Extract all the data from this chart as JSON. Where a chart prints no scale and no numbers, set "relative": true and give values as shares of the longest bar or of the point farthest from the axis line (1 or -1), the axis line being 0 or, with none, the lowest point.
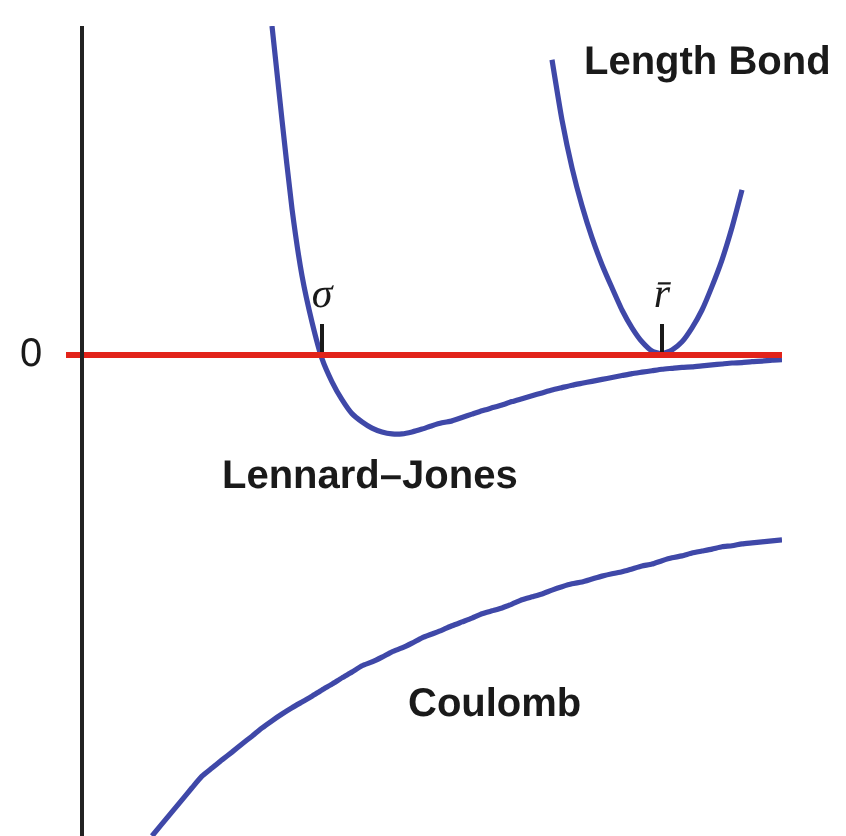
{
  "chart_data": {
    "type": "line",
    "relative": true,
    "categories": [
      null,
      null,
      null,
      null,
      null,
      null,
      null,
      null,
      null,
      null,
      null,
      null,
      null,
      null,
      null,
      null,
      null,
      null,
      null,
      null,
      null,
      null,
      null,
      null,
      "σ",
      null,
      null,
      null,
      null,
      null,
      null,
      null,
      null,
      null,
      null,
      null,
      null,
      null,
      null,
      null,
      null,
      null,
      null,
      null,
      null,
      null,
      null,
      null,
      null,
      null,
      null,
      null,
      null,
      null,
      null,
      null,
      null,
      null,
      "r̄",
      null,
      null,
      null,
      null,
      null,
      null,
      null,
      null,
      null,
      null,
      null,
      null
    ],
    "series": [
      {
        "name": "Lennard–Jones",
        "color": "#3f48a8",
        "values": [
          null,
          null,
          null,
          null,
          null,
          null,
          null,
          null,
          null,
          null,
          null,
          null,
          null,
          null,
          null,
          null,
          null,
          null,
          null,
          0.68,
          0.485,
          0.301,
          0.162,
          0.066,
          -0.01,
          -0.058,
          -0.095,
          -0.124,
          -0.141,
          -0.154,
          -0.162,
          -0.166,
          -0.166,
          -0.162,
          -0.156,
          -0.149,
          -0.143,
          -0.139,
          -0.132,
          -0.125,
          -0.118,
          -0.112,
          -0.106,
          -0.099,
          -0.093,
          -0.087,
          -0.081,
          -0.075,
          -0.07,
          -0.065,
          -0.061,
          -0.057,
          -0.053,
          -0.049,
          -0.045,
          -0.041,
          -0.038,
          -0.035,
          -0.032,
          -0.03,
          -0.028,
          -0.027,
          -0.025,
          -0.023,
          -0.021,
          -0.019,
          -0.018,
          -0.016,
          -0.015,
          -0.013,
          -0.012
        ]
      },
      {
        "name": "Length Bond",
        "color": "#3f48a8",
        "values": [
          null,
          null,
          null,
          null,
          null,
          null,
          null,
          null,
          null,
          null,
          null,
          null,
          null,
          null,
          null,
          null,
          null,
          null,
          null,
          null,
          null,
          null,
          null,
          null,
          null,
          null,
          null,
          null,
          null,
          null,
          null,
          null,
          null,
          null,
          null,
          null,
          null,
          null,
          null,
          null,
          null,
          null,
          null,
          null,
          null,
          null,
          null,
          0.61,
          0.485,
          0.386,
          0.307,
          0.241,
          0.185,
          0.137,
          0.091,
          0.054,
          0.025,
          0.006,
          0.0,
          0.008,
          0.025,
          0.054,
          0.091,
          0.14,
          0.195,
          0.262,
          0.34,
          null,
          null,
          null,
          null
        ]
      },
      {
        "name": "Coulomb",
        "color": "#3f48a8",
        "values": [
          null,
          null,
          null,
          null,
          null,
          null,
          null,
          -1.0,
          -0.975,
          -0.95,
          -0.925,
          -0.9,
          -0.876,
          -0.859,
          -0.842,
          -0.826,
          -0.809,
          -0.793,
          -0.776,
          -0.761,
          -0.747,
          -0.734,
          -0.722,
          -0.71,
          -0.697,
          -0.685,
          -0.672,
          -0.66,
          -0.647,
          -0.639,
          -0.629,
          -0.618,
          -0.61,
          -0.6,
          -0.589,
          -0.581,
          -0.573,
          -0.564,
          -0.556,
          -0.548,
          -0.539,
          -0.533,
          -0.527,
          -0.519,
          -0.51,
          -0.504,
          -0.498,
          -0.49,
          -0.483,
          -0.477,
          -0.473,
          -0.467,
          -0.461,
          -0.456,
          -0.452,
          -0.446,
          -0.44,
          -0.436,
          -0.429,
          -0.423,
          -0.419,
          -0.413,
          -0.409,
          -0.405,
          -0.4,
          -0.398,
          -0.394,
          -0.392,
          -0.39,
          -0.388,
          -0.386
        ]
      }
    ],
    "annotations": [
      "0"
    ]
  }
}
